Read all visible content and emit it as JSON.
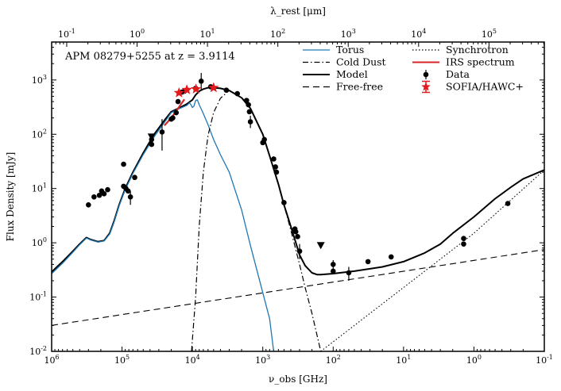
{
  "chart_data": {
    "type": "line",
    "title": "",
    "annotation": "APM 08279+5255 at z = 3.9114",
    "redshift": 3.9114,
    "xlabel": "ν_obs [GHz]",
    "ylabel": "Flux Density [mJy]",
    "top_xlabel": "λ_rest [μm]",
    "x_scale": "log",
    "y_scale": "log",
    "x_reversed": true,
    "xlim": [
      1000000,
      0.1
    ],
    "ylim": [
      0.01,
      5000
    ],
    "top_xlim_um": [
      0.0611,
      611000
    ],
    "x_ticks": [
      {
        "value": 1000000,
        "label": "10^6"
      },
      {
        "value": 100000,
        "label": "10^5"
      },
      {
        "value": 10000,
        "label": "10^4"
      },
      {
        "value": 1000,
        "label": "10^3"
      },
      {
        "value": 100,
        "label": "10^2"
      },
      {
        "value": 10,
        "label": "10^1"
      },
      {
        "value": 1,
        "label": "10^0"
      },
      {
        "value": 0.1,
        "label": "10^-1"
      }
    ],
    "y_ticks": [
      {
        "value": 0.01,
        "label": "10^-2"
      },
      {
        "value": 0.1,
        "label": "10^-1"
      },
      {
        "value": 1,
        "label": "10^0"
      },
      {
        "value": 10,
        "label": "10^1"
      },
      {
        "value": 100,
        "label": "10^2"
      },
      {
        "value": 1000,
        "label": "10^3"
      }
    ],
    "top_ticks": [
      {
        "value": 0.1,
        "label": "10^-1"
      },
      {
        "value": 1,
        "label": "10^0"
      },
      {
        "value": 10,
        "label": "10^1"
      },
      {
        "value": 100,
        "label": "10^2"
      },
      {
        "value": 1000,
        "label": "10^3"
      },
      {
        "value": 10000,
        "label": "10^4"
      },
      {
        "value": 100000,
        "label": "10^5"
      }
    ],
    "legend": [
      {
        "key": "torus",
        "label": "Torus",
        "style": "line",
        "color": "#1f77b4",
        "dash": ""
      },
      {
        "key": "cold_dust",
        "label": "Cold Dust",
        "style": "line",
        "color": "#000000",
        "dash": "7,3,1.5,3"
      },
      {
        "key": "model",
        "label": "Model",
        "style": "line",
        "color": "#000000",
        "dash": ""
      },
      {
        "key": "free_free",
        "label": "Free-free",
        "style": "line",
        "color": "#000000",
        "dash": "8,5"
      },
      {
        "key": "synchrotron",
        "label": "Synchrotron",
        "style": "line",
        "color": "#000000",
        "dash": "1.5,2.5"
      },
      {
        "key": "irs",
        "label": "IRS spectrum",
        "style": "line",
        "color": "#d62728",
        "dash": ""
      },
      {
        "key": "data",
        "label": "Data",
        "style": "point",
        "color": "#000000"
      },
      {
        "key": "sofia",
        "label": "SOFIA/HAWC+",
        "style": "star",
        "color": "#e31a1c"
      }
    ],
    "series": [
      {
        "name": "Model",
        "key": "model",
        "points": [
          [
            1000000,
            0.29
          ],
          [
            700000,
            0.45
          ],
          [
            500000,
            0.7
          ],
          [
            400000,
            0.95
          ],
          [
            320000,
            1.25
          ],
          [
            280000,
            1.15
          ],
          [
            220000,
            1.05
          ],
          [
            180000,
            1.1
          ],
          [
            150000,
            1.5
          ],
          [
            130000,
            2.5
          ],
          [
            110000,
            5
          ],
          [
            90000,
            10
          ],
          [
            70000,
            20
          ],
          [
            50000,
            45
          ],
          [
            35000,
            100
          ],
          [
            25000,
            180
          ],
          [
            20000,
            260
          ],
          [
            15000,
            310
          ],
          [
            12000,
            360
          ],
          [
            10000,
            430
          ],
          [
            9000,
            530
          ],
          [
            8000,
            620
          ],
          [
            7000,
            680
          ],
          [
            6000,
            720
          ],
          [
            5000,
            720
          ],
          [
            4000,
            700
          ],
          [
            3000,
            640
          ],
          [
            2000,
            470
          ],
          [
            1500,
            300
          ],
          [
            1000,
            100
          ],
          [
            800,
            40
          ],
          [
            600,
            12
          ],
          [
            500,
            5
          ],
          [
            400,
            2
          ],
          [
            300,
            0.6
          ],
          [
            250,
            0.38
          ],
          [
            200,
            0.28
          ],
          [
            170,
            0.26
          ],
          [
            150,
            0.26
          ],
          [
            100,
            0.27
          ],
          [
            50,
            0.3
          ],
          [
            20,
            0.36
          ],
          [
            10,
            0.45
          ],
          [
            5,
            0.65
          ],
          [
            3,
            0.95
          ],
          [
            2,
            1.5
          ],
          [
            1,
            3
          ],
          [
            0.5,
            6.5
          ],
          [
            0.3,
            10.5
          ],
          [
            0.2,
            15
          ],
          [
            0.1,
            22
          ]
        ]
      },
      {
        "name": "Torus",
        "key": "torus",
        "points": [
          [
            1000000,
            0.27
          ],
          [
            700000,
            0.42
          ],
          [
            500000,
            0.67
          ],
          [
            400000,
            0.92
          ],
          [
            320000,
            1.22
          ],
          [
            280000,
            1.13
          ],
          [
            220000,
            1.03
          ],
          [
            180000,
            1.08
          ],
          [
            150000,
            1.45
          ],
          [
            130000,
            2.4
          ],
          [
            110000,
            4.8
          ],
          [
            90000,
            9.5
          ],
          [
            70000,
            19
          ],
          [
            50000,
            42
          ],
          [
            35000,
            90
          ],
          [
            25000,
            165
          ],
          [
            20000,
            250
          ],
          [
            15000,
            300
          ],
          [
            12000,
            340
          ],
          [
            11000,
            380
          ],
          [
            10500,
            350
          ],
          [
            10000,
            310
          ],
          [
            9500,
            330
          ],
          [
            9000,
            420
          ],
          [
            8500,
            430
          ],
          [
            8000,
            350
          ],
          [
            7000,
            240
          ],
          [
            6000,
            150
          ],
          [
            5000,
            80
          ],
          [
            4000,
            42
          ],
          [
            3000,
            20
          ],
          [
            2000,
            4
          ],
          [
            1500,
            0.9
          ],
          [
            1000,
            0.12
          ],
          [
            800,
            0.04
          ],
          [
            700,
            0.01
          ]
        ]
      },
      {
        "name": "Cold Dust",
        "key": "cold_dust",
        "points": [
          [
            10300,
            0.01
          ],
          [
            9000,
            0.1
          ],
          [
            8000,
            2
          ],
          [
            7000,
            20
          ],
          [
            6000,
            95
          ],
          [
            5000,
            250
          ],
          [
            4000,
            460
          ],
          [
            3000,
            640
          ],
          [
            2000,
            470
          ],
          [
            1500,
            300
          ],
          [
            1000,
            100
          ],
          [
            800,
            40
          ],
          [
            600,
            12
          ],
          [
            500,
            5
          ],
          [
            400,
            1.7
          ],
          [
            300,
            0.4
          ],
          [
            250,
            0.15
          ],
          [
            200,
            0.05
          ],
          [
            170,
            0.02
          ],
          [
            150,
            0.01
          ]
        ]
      },
      {
        "name": "Free-free",
        "key": "free_free",
        "points": [
          [
            1000000,
            0.03
          ],
          [
            0.1,
            0.75
          ]
        ]
      },
      {
        "name": "Synchrotron",
        "key": "synchrotron",
        "points": [
          [
            150,
            0.01
          ],
          [
            1,
            1.5
          ],
          [
            0.1,
            22
          ]
        ]
      },
      {
        "name": "IRS spectrum",
        "key": "irs",
        "points": [
          [
            25000,
            145
          ],
          [
            20000,
            200
          ],
          [
            16000,
            300
          ],
          [
            13000,
            440
          ]
        ]
      }
    ],
    "data_points": [
      {
        "x": 300000,
        "y": 5
      },
      {
        "x": 250000,
        "y": 7
      },
      {
        "x": 210000,
        "y": 7.5
      },
      {
        "x": 195000,
        "y": 9
      },
      {
        "x": 180000,
        "y": 8
      },
      {
        "x": 160000,
        "y": 9.5
      },
      {
        "x": 95000,
        "y": 28
      },
      {
        "x": 95000,
        "y": 11
      },
      {
        "x": 88000,
        "y": 10
      },
      {
        "x": 82000,
        "y": 9
      },
      {
        "x": 76000,
        "y": 7,
        "yerr_lo": 5,
        "yerr_hi": 9
      },
      {
        "x": 66000,
        "y": 16
      },
      {
        "x": 38000,
        "y": 65
      },
      {
        "x": 38000,
        "y": 80
      },
      {
        "x": 27000,
        "y": 110,
        "yerr_lo": 50,
        "yerr_hi": 190
      },
      {
        "x": 20000,
        "y": 190
      },
      {
        "x": 19000,
        "y": 200
      },
      {
        "x": 17000,
        "y": 250
      },
      {
        "x": 16000,
        "y": 400
      },
      {
        "x": 14000,
        "y": 600
      },
      {
        "x": 13000,
        "y": 620
      },
      {
        "x": 9000,
        "y": 700
      },
      {
        "x": 7500,
        "y": 950,
        "yerr_lo": 650,
        "yerr_hi": 1350
      },
      {
        "x": 5500,
        "y": 750
      },
      {
        "x": 3300,
        "y": 650
      },
      {
        "x": 2300,
        "y": 560
      },
      {
        "x": 1700,
        "y": 420
      },
      {
        "x": 1600,
        "y": 350
      },
      {
        "x": 1550,
        "y": 260
      },
      {
        "x": 1500,
        "y": 170,
        "yerr_lo": 130,
        "yerr_hi": 220
      },
      {
        "x": 1000,
        "y": 70
      },
      {
        "x": 950,
        "y": 80
      },
      {
        "x": 700,
        "y": 35
      },
      {
        "x": 660,
        "y": 25
      },
      {
        "x": 640,
        "y": 20
      },
      {
        "x": 500,
        "y": 5.5
      },
      {
        "x": 350,
        "y": 1.8
      },
      {
        "x": 340,
        "y": 1.6
      },
      {
        "x": 320,
        "y": 1.3
      },
      {
        "x": 300,
        "y": 0.7,
        "yerr_lo": 0.5,
        "yerr_hi": 0.95
      },
      {
        "x": 100,
        "y": 0.4,
        "yerr_lo": 0.33,
        "yerr_hi": 0.48
      },
      {
        "x": 100,
        "y": 0.3
      },
      {
        "x": 60,
        "y": 0.28,
        "yerr_lo": 0.2,
        "yerr_hi": 0.36
      },
      {
        "x": 32,
        "y": 0.45
      },
      {
        "x": 15,
        "y": 0.55
      },
      {
        "x": 1.4,
        "y": 1.2
      },
      {
        "x": 1.4,
        "y": 0.95
      },
      {
        "x": 0.33,
        "y": 5.3
      }
    ],
    "upper_limits": [
      {
        "x": 38000,
        "y": 90
      },
      {
        "x": 150,
        "y": 0.9
      }
    ],
    "sofia_points": [
      {
        "x": 15500,
        "y": 580,
        "xerr_lo": 17000,
        "xerr_hi": 14000
      },
      {
        "x": 12000,
        "y": 660,
        "xerr_lo": 13200,
        "xerr_hi": 10900
      },
      {
        "x": 8900,
        "y": 680,
        "xerr_lo": 9700,
        "xerr_hi": 8100
      },
      {
        "x": 5000,
        "y": 720,
        "xerr_lo": 5400,
        "xerr_hi": 4600
      }
    ]
  }
}
